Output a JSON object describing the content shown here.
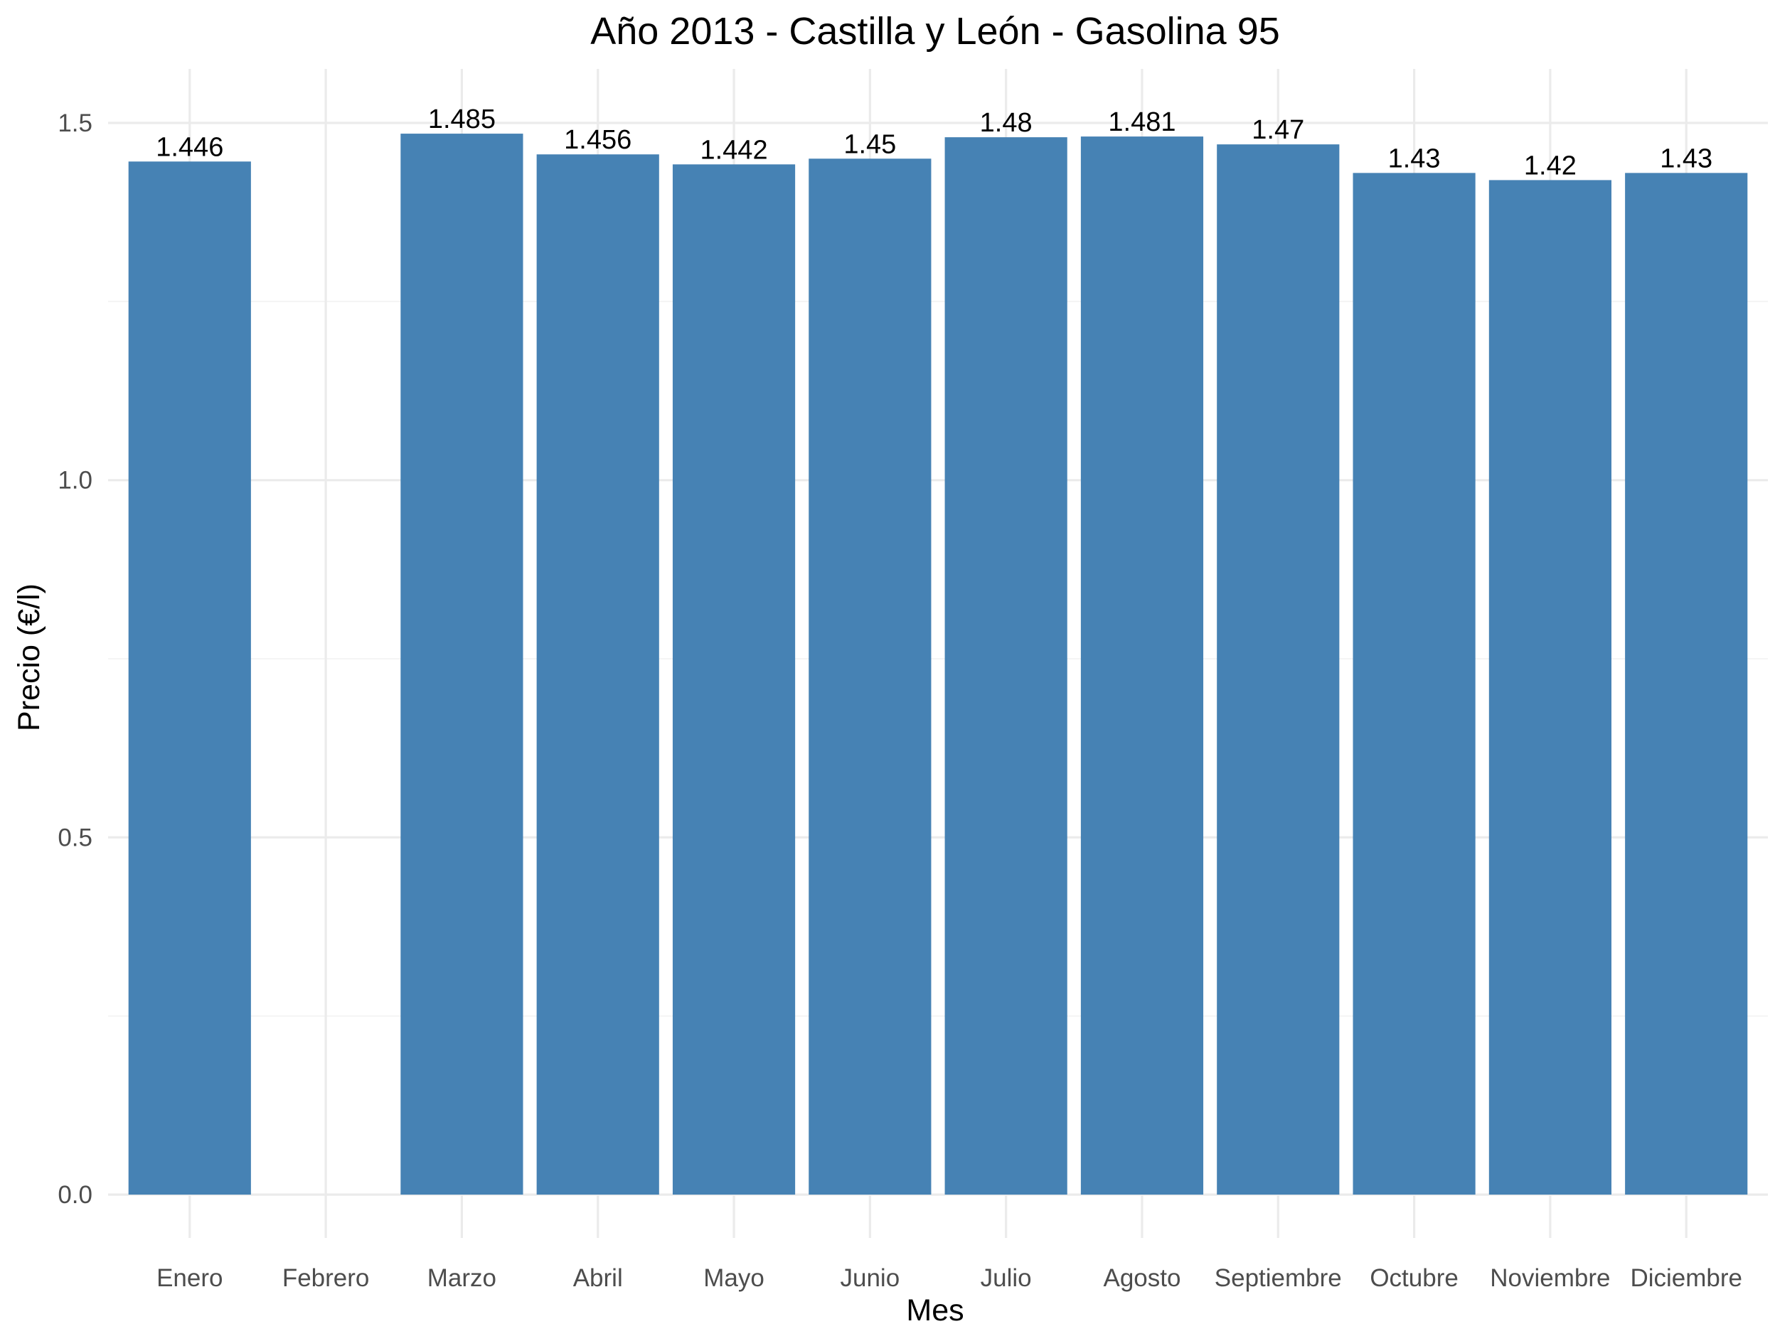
{
  "chart_data": {
    "type": "bar",
    "title": "Año 2013 - Castilla y León - Gasolina 95",
    "xlabel": "Mes",
    "ylabel": "Precio (€/l)",
    "categories": [
      "Enero",
      "Febrero",
      "Marzo",
      "Abril",
      "Mayo",
      "Junio",
      "Julio",
      "Agosto",
      "Septiembre",
      "Octubre",
      "Noviembre",
      "Diciembre"
    ],
    "values": [
      1.446,
      null,
      1.485,
      1.456,
      1.442,
      1.45,
      1.48,
      1.481,
      1.47,
      1.43,
      1.42,
      1.43
    ],
    "value_labels": [
      "1.446",
      "",
      "1.485",
      "1.456",
      "1.442",
      "1.45",
      "1.48",
      "1.481",
      "1.47",
      "1.43",
      "1.42",
      "1.43"
    ],
    "ylim": [
      0,
      1.575
    ],
    "yticks": [
      0.0,
      0.5,
      1.0,
      1.5
    ],
    "ytick_labels": [
      "0.0",
      "0.5",
      "1.0",
      "1.5"
    ],
    "grid": true,
    "legend": "none",
    "bar_color": "#4682b4"
  }
}
